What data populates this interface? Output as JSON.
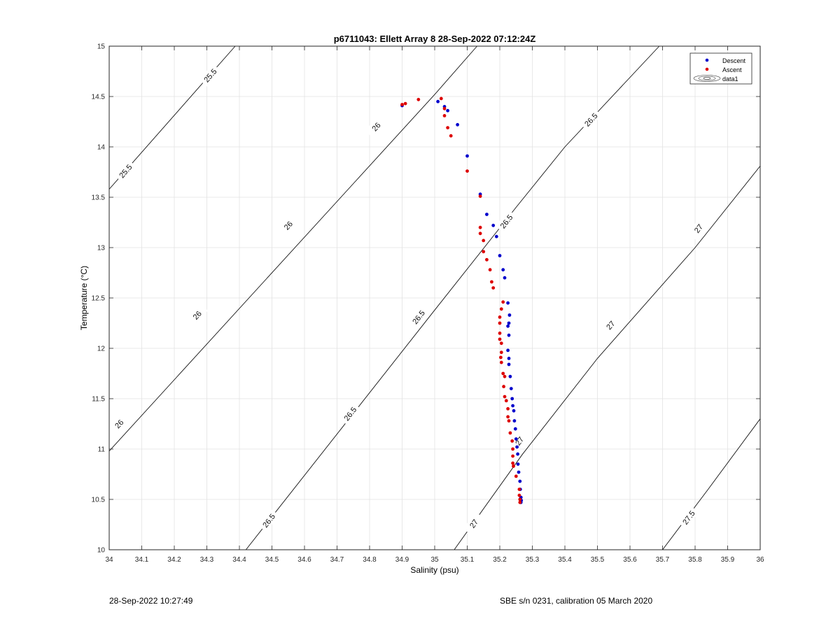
{
  "chart_data": {
    "type": "scatter",
    "title": "p6711043: Ellett Array 8 28-Sep-2022 07:12:24Z",
    "xlabel": "Salinity (psu)",
    "ylabel": "Temperature (°C)",
    "xlim": [
      34,
      36
    ],
    "ylim": [
      10,
      15
    ],
    "xticks": [
      "34",
      "34.1",
      "34.2",
      "34.3",
      "34.4",
      "34.5",
      "34.6",
      "34.7",
      "34.8",
      "34.9",
      "35",
      "35.1",
      "35.2",
      "35.3",
      "35.4",
      "35.5",
      "35.6",
      "35.7",
      "35.8",
      "35.9",
      "36"
    ],
    "yticks": [
      "10",
      "10.5",
      "11",
      "11.5",
      "12",
      "12.5",
      "13",
      "13.5",
      "14",
      "14.5",
      "15"
    ],
    "grid": true,
    "legend_position": "top-right",
    "legend": [
      "Descent",
      "Ascent",
      "data1"
    ],
    "contours": [
      {
        "level": "25.5",
        "points": [
          [
            34.0,
            13.58
          ],
          [
            34.387,
            15.0
          ]
        ]
      },
      {
        "level": "26",
        "points": [
          [
            34.0,
            10.98
          ],
          [
            35.0,
            14.52
          ],
          [
            35.13,
            15.0
          ]
        ]
      },
      {
        "level": "26.5",
        "points": [
          [
            34.42,
            10.0
          ],
          [
            35.0,
            12.38
          ],
          [
            35.25,
            13.4
          ],
          [
            35.4,
            14.0
          ],
          [
            35.69,
            15.0
          ]
        ]
      },
      {
        "level": "27",
        "points": [
          [
            35.06,
            10.0
          ],
          [
            35.27,
            10.95
          ],
          [
            35.5,
            11.9
          ],
          [
            35.8,
            13.0
          ],
          [
            36.0,
            13.81
          ]
        ]
      },
      {
        "level": "27.5",
        "points": [
          [
            35.7,
            10.0
          ],
          [
            35.84,
            10.6
          ],
          [
            36.0,
            11.3
          ]
        ]
      }
    ],
    "contour_labels": [
      {
        "text": "25.5",
        "x": 34.31,
        "y": 14.71
      },
      {
        "text": "25.5",
        "x": 34.05,
        "y": 13.76
      },
      {
        "text": "26",
        "x": 34.82,
        "y": 14.2
      },
      {
        "text": "26",
        "x": 34.27,
        "y": 12.33
      },
      {
        "text": "26",
        "x": 34.03,
        "y": 11.25
      },
      {
        "text": "26",
        "x": 34.55,
        "y": 13.22
      },
      {
        "text": "26.5",
        "x": 35.22,
        "y": 13.26
      },
      {
        "text": "26.5",
        "x": 34.95,
        "y": 12.31
      },
      {
        "text": "26.5",
        "x": 34.74,
        "y": 11.35
      },
      {
        "text": "26.5",
        "x": 34.49,
        "y": 10.29
      },
      {
        "text": "26.5",
        "x": 35.48,
        "y": 14.27
      },
      {
        "text": "27",
        "x": 35.26,
        "y": 11.08
      },
      {
        "text": "27",
        "x": 35.54,
        "y": 12.23
      },
      {
        "text": "27",
        "x": 35.81,
        "y": 13.19
      },
      {
        "text": "27",
        "x": 35.12,
        "y": 10.26
      },
      {
        "text": "27.5",
        "x": 35.78,
        "y": 10.32
      }
    ],
    "series": [
      {
        "name": "Descent",
        "color": "#0000cc",
        "points": [
          [
            34.9,
            14.41
          ],
          [
            35.01,
            14.45
          ],
          [
            35.03,
            14.4
          ],
          [
            35.04,
            14.36
          ],
          [
            35.07,
            14.22
          ],
          [
            35.1,
            13.91
          ],
          [
            35.14,
            13.53
          ],
          [
            35.16,
            13.33
          ],
          [
            35.18,
            13.22
          ],
          [
            35.19,
            13.11
          ],
          [
            35.2,
            12.92
          ],
          [
            35.21,
            12.78
          ],
          [
            35.215,
            12.7
          ],
          [
            35.225,
            12.45
          ],
          [
            35.23,
            12.33
          ],
          [
            35.228,
            12.25
          ],
          [
            35.225,
            12.22
          ],
          [
            35.228,
            12.13
          ],
          [
            35.225,
            11.98
          ],
          [
            35.228,
            11.9
          ],
          [
            35.228,
            11.84
          ],
          [
            35.232,
            11.72
          ],
          [
            35.235,
            11.6
          ],
          [
            35.238,
            11.5
          ],
          [
            35.24,
            11.43
          ],
          [
            35.243,
            11.38
          ],
          [
            35.245,
            11.28
          ],
          [
            35.248,
            11.2
          ],
          [
            35.25,
            11.1
          ],
          [
            35.253,
            11.02
          ],
          [
            35.255,
            10.95
          ],
          [
            35.256,
            10.85
          ],
          [
            35.258,
            10.77
          ],
          [
            35.262,
            10.68
          ],
          [
            35.263,
            10.6
          ],
          [
            35.265,
            10.52
          ],
          [
            35.266,
            10.49
          ],
          [
            35.265,
            10.47
          ]
        ]
      },
      {
        "name": "Ascent",
        "color": "#dd0000",
        "points": [
          [
            34.9,
            14.42
          ],
          [
            34.91,
            14.43
          ],
          [
            34.95,
            14.47
          ],
          [
            35.02,
            14.48
          ],
          [
            35.03,
            14.38
          ],
          [
            35.03,
            14.31
          ],
          [
            35.04,
            14.19
          ],
          [
            35.05,
            14.11
          ],
          [
            35.1,
            13.76
          ],
          [
            35.14,
            13.51
          ],
          [
            35.14,
            13.2
          ],
          [
            35.14,
            13.14
          ],
          [
            35.15,
            13.07
          ],
          [
            35.15,
            12.96
          ],
          [
            35.16,
            12.88
          ],
          [
            35.17,
            12.78
          ],
          [
            35.175,
            12.66
          ],
          [
            35.18,
            12.6
          ],
          [
            35.21,
            12.46
          ],
          [
            35.205,
            12.39
          ],
          [
            35.2,
            12.31
          ],
          [
            35.2,
            12.25
          ],
          [
            35.2,
            12.15
          ],
          [
            35.2,
            12.09
          ],
          [
            35.205,
            12.05
          ],
          [
            35.205,
            11.96
          ],
          [
            35.203,
            11.91
          ],
          [
            35.205,
            11.86
          ],
          [
            35.21,
            11.75
          ],
          [
            35.215,
            11.72
          ],
          [
            35.212,
            11.62
          ],
          [
            35.215,
            11.52
          ],
          [
            35.22,
            11.48
          ],
          [
            35.225,
            11.4
          ],
          [
            35.225,
            11.32
          ],
          [
            35.228,
            11.28
          ],
          [
            35.232,
            11.16
          ],
          [
            35.238,
            11.08
          ],
          [
            35.24,
            11.0
          ],
          [
            35.24,
            10.93
          ],
          [
            35.24,
            10.86
          ],
          [
            35.242,
            10.83
          ],
          [
            35.25,
            10.73
          ],
          [
            35.26,
            10.6
          ],
          [
            35.26,
            10.54
          ],
          [
            35.262,
            10.5
          ],
          [
            35.262,
            10.47
          ]
        ]
      }
    ]
  },
  "footer": {
    "timestamp": "28-Sep-2022 10:27:49",
    "instrument": "SBE s/n 0231, calibration 05 March 2020"
  }
}
